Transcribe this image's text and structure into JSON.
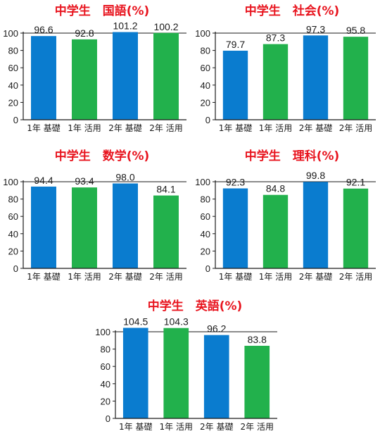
{
  "colors": {
    "basic": "#0a7ccf",
    "applied": "#22b14c",
    "title": "#e8141e",
    "axis": "#1a1a1a"
  },
  "chart_data": [
    {
      "type": "bar",
      "title": "中学生　国語(%)",
      "categories": [
        "1年 基礎",
        "1年 活用",
        "2年 基礎",
        "2年 活用"
      ],
      "values": [
        96.6,
        92.8,
        101.2,
        100.2
      ],
      "value_labels": [
        "96.6",
        "92.8",
        "101.2",
        "100.2"
      ],
      "ylim": [
        0,
        100
      ],
      "yticks": [
        0,
        20,
        40,
        60,
        80,
        100
      ],
      "grid": false
    },
    {
      "type": "bar",
      "title": "中学生　社会(%)",
      "categories": [
        "1年 基礎",
        "1年 活用",
        "2年 基礎",
        "2年 活用"
      ],
      "values": [
        79.7,
        87.3,
        97.3,
        95.8
      ],
      "value_labels": [
        "79.7",
        "87.3",
        "97.3",
        "95.8"
      ],
      "ylim": [
        0,
        100
      ],
      "yticks": [
        0,
        20,
        40,
        60,
        80,
        100
      ],
      "grid": false
    },
    {
      "type": "bar",
      "title": "中学生　数学(%)",
      "categories": [
        "1年 基礎",
        "1年 活用",
        "2年 基礎",
        "2年 活用"
      ],
      "values": [
        94.4,
        93.4,
        98.0,
        84.1
      ],
      "value_labels": [
        "94.4",
        "93.4",
        "98.0",
        "84.1"
      ],
      "ylim": [
        0,
        100
      ],
      "yticks": [
        0,
        20,
        40,
        60,
        80,
        100
      ],
      "grid": false
    },
    {
      "type": "bar",
      "title": "中学生　理科(%)",
      "categories": [
        "1年 基礎",
        "1年 活用",
        "2年 基礎",
        "2年 活用"
      ],
      "values": [
        92.3,
        84.8,
        99.8,
        92.1
      ],
      "value_labels": [
        "92.3",
        "84.8",
        "99.8",
        "92.1"
      ],
      "ylim": [
        0,
        100
      ],
      "yticks": [
        0,
        20,
        40,
        60,
        80,
        100
      ],
      "grid": false
    },
    {
      "type": "bar",
      "title": "中学生　英語(%)",
      "categories": [
        "1年 基礎",
        "1年 活用",
        "2年 基礎",
        "2年 活用"
      ],
      "values": [
        104.5,
        104.3,
        96.2,
        83.8
      ],
      "value_labels": [
        "104.5",
        "104.3",
        "96.2",
        "83.8"
      ],
      "ylim": [
        0,
        100
      ],
      "yticks": [
        0,
        20,
        40,
        60,
        80,
        100
      ],
      "grid": false
    }
  ]
}
